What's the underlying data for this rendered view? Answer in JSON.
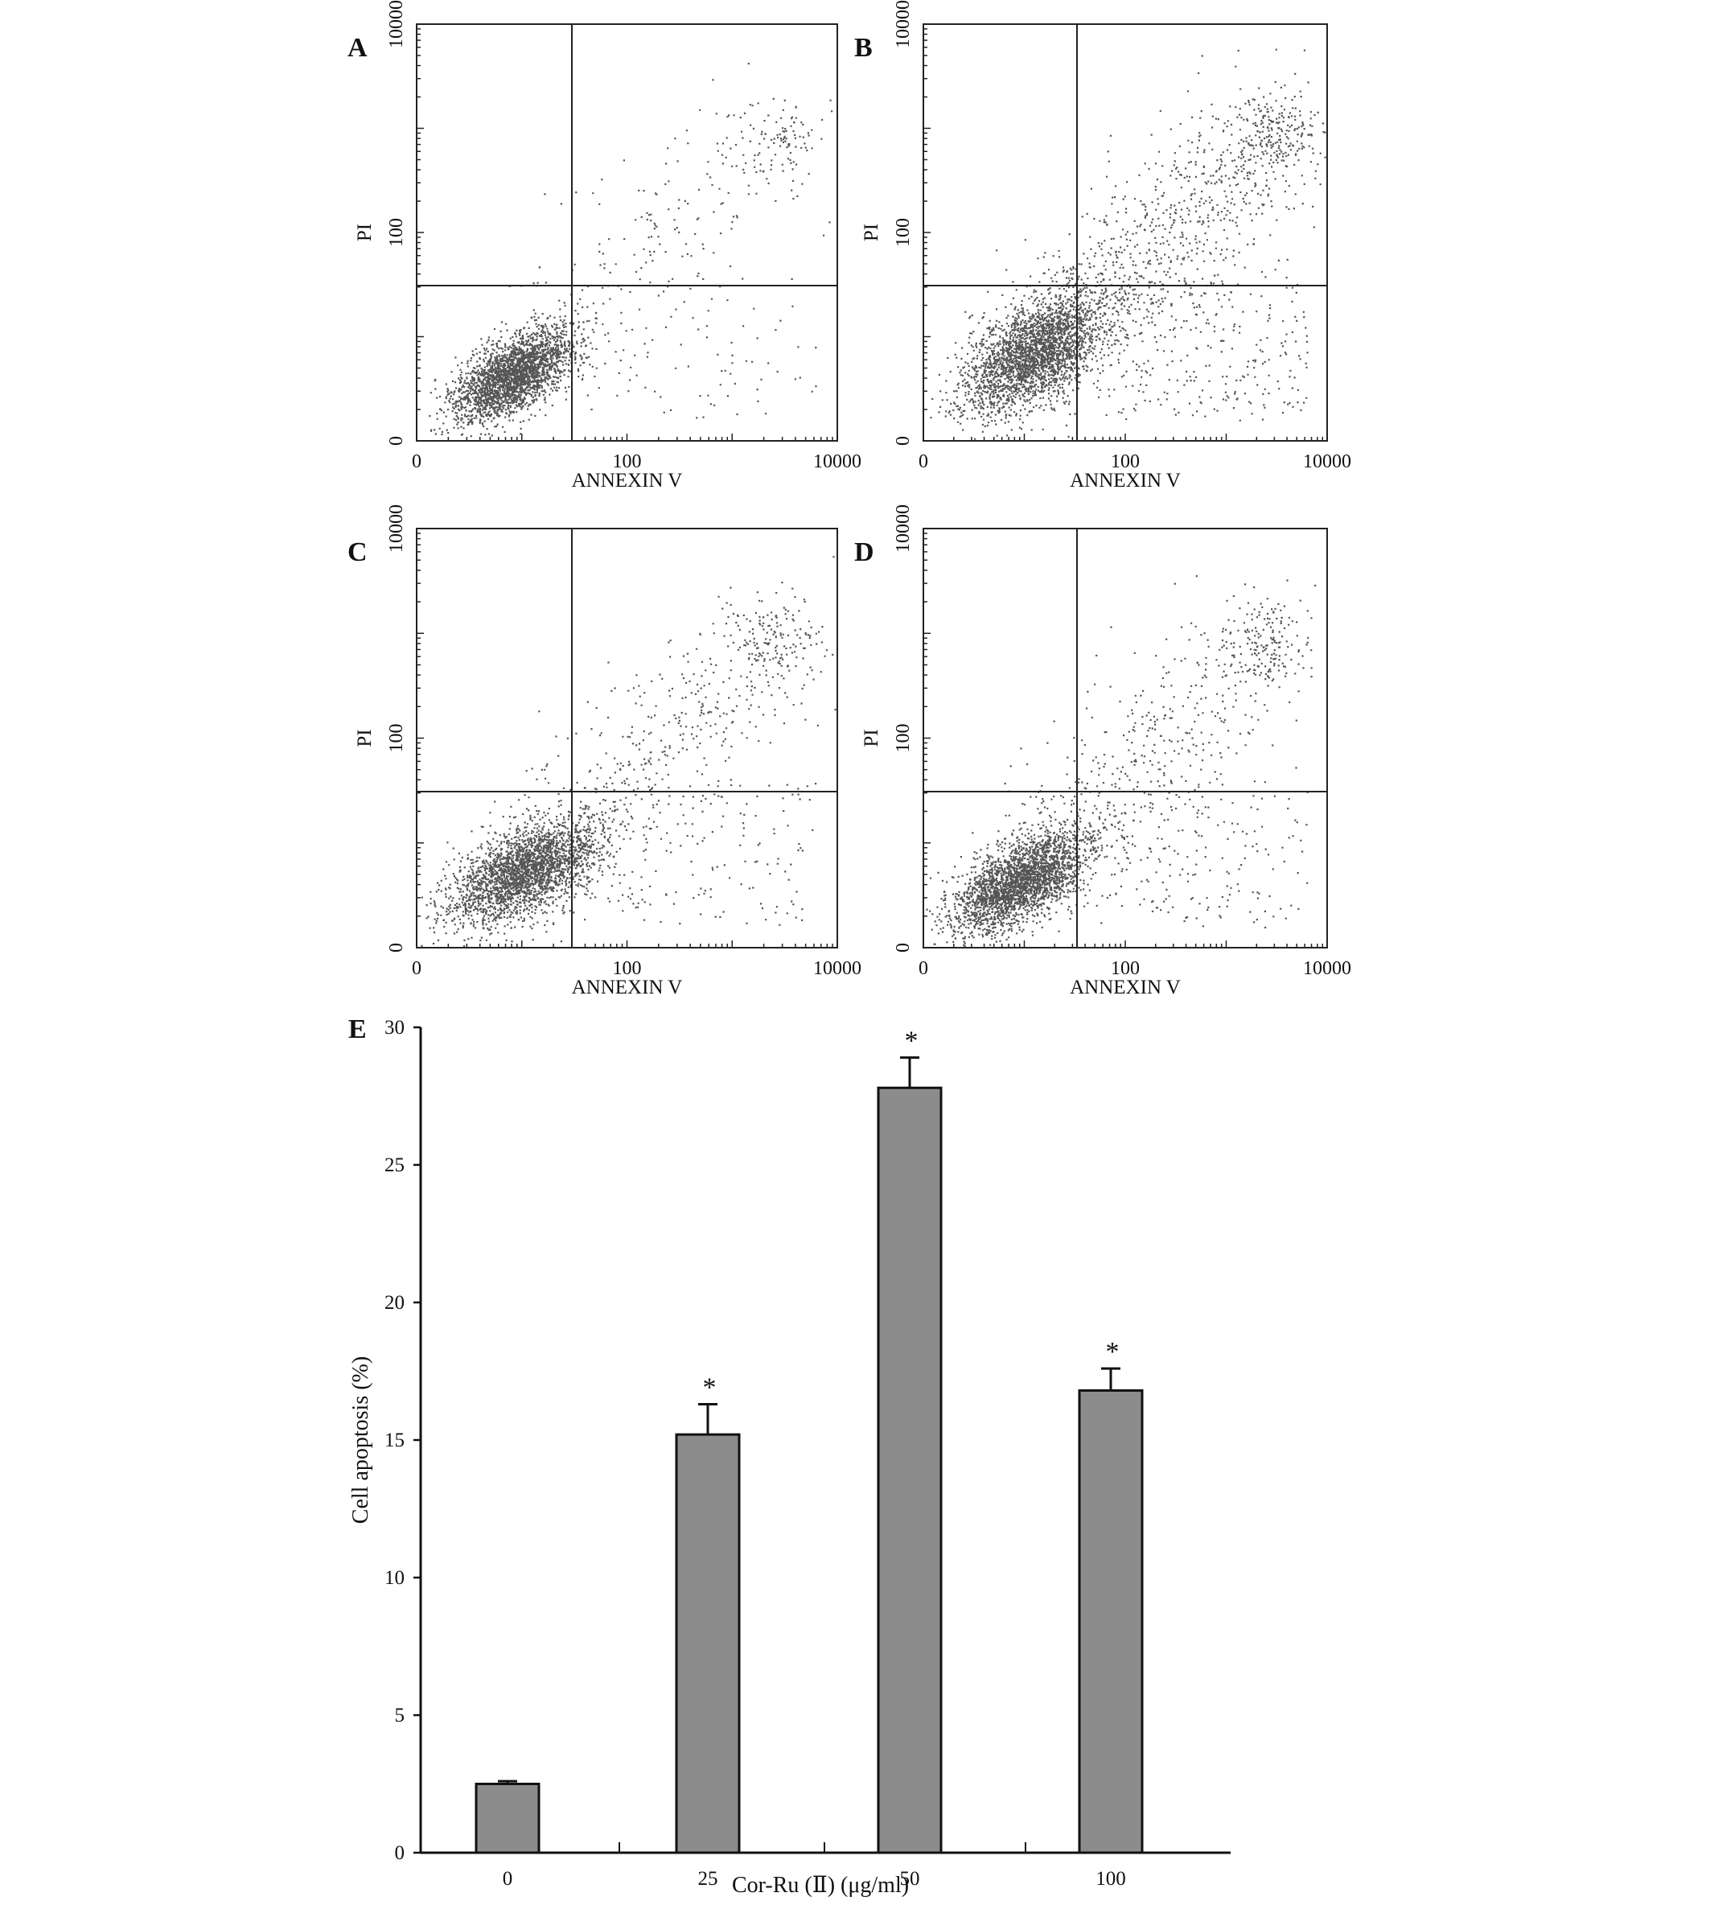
{
  "panels": [
    {
      "letter": "A",
      "xlabel": "ANNEXIN V",
      "ylabel": "PI",
      "xticks": [
        "0",
        "100",
        "10000"
      ],
      "yticks": [
        "0",
        "100",
        "10000"
      ]
    },
    {
      "letter": "B",
      "xlabel": "ANNEXIN V",
      "ylabel": "PI",
      "xticks": [
        "0",
        "100",
        "10000"
      ],
      "yticks": [
        "0",
        "100",
        "10000"
      ]
    },
    {
      "letter": "C",
      "xlabel": "ANNEXIN V",
      "ylabel": "PI",
      "xticks": [
        "0",
        "100",
        "10000"
      ],
      "yticks": [
        "0",
        "100",
        "10000"
      ]
    },
    {
      "letter": "D",
      "xlabel": "ANNEXIN V",
      "ylabel": "PI",
      "xticks": [
        "0",
        "100",
        "10000"
      ],
      "yticks": [
        "0",
        "100",
        "10000"
      ]
    }
  ],
  "chart_data": [
    {
      "type": "scatter",
      "panel": "A",
      "xlabel": "ANNEXIN V",
      "ylabel": "PI",
      "xscale": "log",
      "yscale": "log",
      "xlim": [
        0,
        10000
      ],
      "ylim": [
        0,
        10000
      ],
      "color": "#555555",
      "sparse_density": 1.0
    },
    {
      "type": "scatter",
      "panel": "B",
      "xlabel": "ANNEXIN V",
      "ylabel": "PI",
      "xscale": "log",
      "yscale": "log",
      "xlim": [
        0,
        10000
      ],
      "ylim": [
        0,
        10000
      ],
      "color": "#555555",
      "sparse_density": 4.0
    },
    {
      "type": "scatter",
      "panel": "C",
      "xlabel": "ANNEXIN V",
      "ylabel": "PI",
      "xscale": "log",
      "yscale": "log",
      "xlim": [
        0,
        10000
      ],
      "ylim": [
        0,
        10000
      ],
      "color": "#555555",
      "sparse_density": 2.2
    },
    {
      "type": "scatter",
      "panel": "D",
      "xlabel": "ANNEXIN V",
      "ylabel": "PI",
      "xscale": "log",
      "yscale": "log",
      "xlim": [
        0,
        10000
      ],
      "ylim": [
        0,
        10000
      ],
      "color": "#555555",
      "sparse_density": 2.4
    },
    {
      "type": "bar",
      "panel": "E",
      "categories": [
        "0",
        "25",
        "50",
        "100"
      ],
      "values": [
        2.5,
        15.2,
        27.8,
        16.8
      ],
      "errors": [
        0.1,
        1.1,
        1.1,
        0.8
      ],
      "significance": [
        "",
        "*",
        "*",
        "*"
      ],
      "xlabel": "Cor-Ru (Ⅱ) (μg/ml)",
      "ylabel": "Cell apoptosis (%)",
      "ylim": [
        0,
        30
      ],
      "yticks": [
        0,
        5,
        10,
        15,
        20,
        25,
        30
      ],
      "bar_color": "#8c8c8c"
    }
  ],
  "bar_panel": {
    "letter": "E"
  }
}
